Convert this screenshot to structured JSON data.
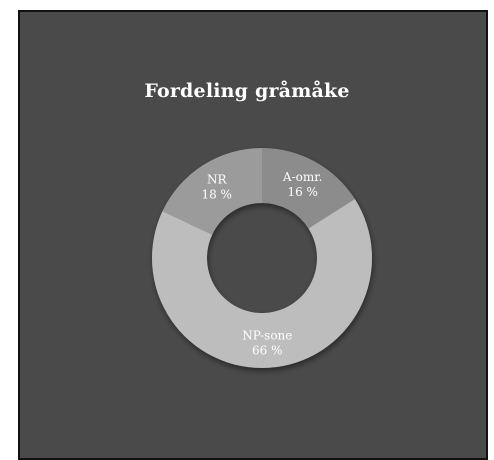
{
  "chart_data": {
    "type": "pie",
    "variant": "donut",
    "title": "Fordeling gråmåke",
    "slices": [
      {
        "label": "A-omr.",
        "value": 16,
        "value_label": "16 %",
        "color": "#8c8c8c"
      },
      {
        "label": "NP-sone",
        "value": 66,
        "value_label": "66 %",
        "color": "#bdbdbd"
      },
      {
        "label": "NR",
        "value": 18,
        "value_label": "18 %",
        "color": "#9b9b9b"
      }
    ],
    "background_color": "#4a4a4a"
  }
}
